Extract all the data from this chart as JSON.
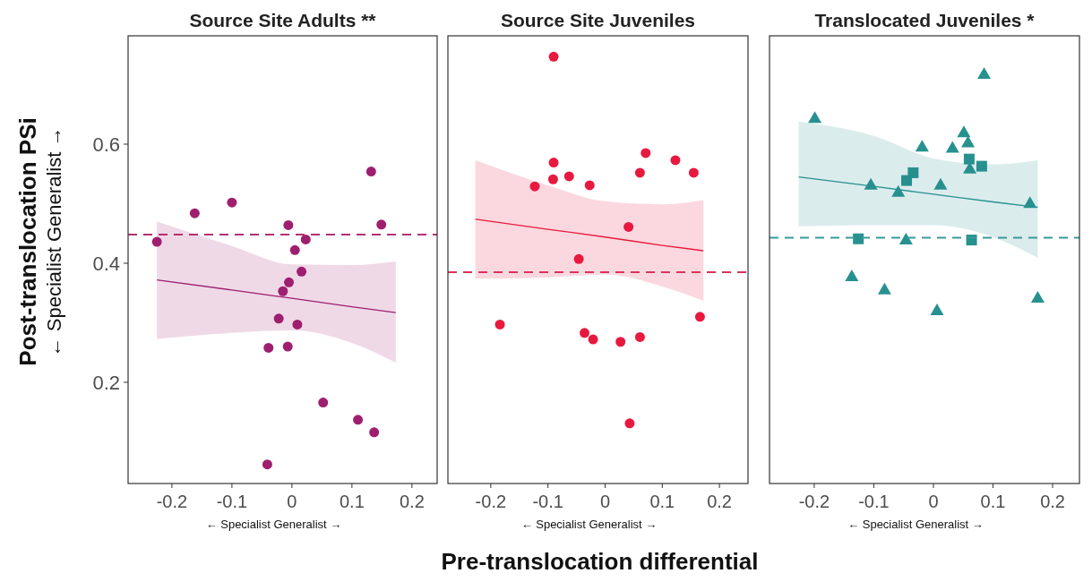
{
  "chart_data": [
    {
      "type": "scatter",
      "title": "Source Site Adults **",
      "ylabel": "Post-translocation PSi",
      "annotations": [
        "← Specialist   Generalist →",
        "← Specialist   Generalist →"
      ],
      "xlim": [
        -0.273,
        0.242
      ],
      "xticks": [
        -0.2,
        -0.1,
        0,
        0.1,
        0.2
      ],
      "ylim": [
        0.03,
        0.782
      ],
      "yticks": [
        0.2,
        0.4,
        0.6
      ],
      "tick_labels": true,
      "grid": false,
      "series": [
        {
          "type": "scatter",
          "marker": "circle",
          "color": "#9e1f6f",
          "x": [
            -0.225,
            -0.162,
            -0.1,
            -0.006,
            0.023,
            0.005,
            0.016,
            -0.005,
            -0.015,
            -0.022,
            0.009,
            -0.039,
            -0.007,
            0.132,
            0.149,
            0.052,
            0.11,
            0.137,
            -0.041
          ],
          "values": [
            0.436,
            0.484,
            0.502,
            0.464,
            0.44,
            0.422,
            0.386,
            0.368,
            0.353,
            0.307,
            0.297,
            0.258,
            0.26,
            0.554,
            0.465,
            0.166,
            0.137,
            0.116,
            0.062
          ]
        },
        {
          "type": "line",
          "marker": "none",
          "color": "#9e1f6f",
          "x": [
            -0.225,
            -0.1,
            0,
            0.1,
            0.173
          ],
          "values": [
            0.372,
            0.355,
            0.341,
            0.327,
            0.317
          ],
          "lower": [
            0.273,
            0.283,
            0.287,
            0.266,
            0.233
          ],
          "upper": [
            0.47,
            0.429,
            0.398,
            0.397,
            0.403
          ]
        }
      ],
      "ref_lines": [
        {
          "axis": "y",
          "value": 0.448,
          "color": "#b2326e",
          "line_style": "dashed"
        }
      ]
    },
    {
      "type": "scatter",
      "title": "Source Site Juveniles",
      "xlabel": "Pre-translocation differential",
      "annotations": [
        "← Specialist   Generalist →"
      ],
      "xlim": [
        -0.275,
        0.25
      ],
      "xticks": [
        -0.2,
        -0.1,
        0,
        0.1,
        0.2
      ],
      "ylim": [
        0.03,
        0.782
      ],
      "tick_labels": "x",
      "grid": false,
      "series": [
        {
          "type": "scatter",
          "marker": "circle",
          "color": "#e8193f",
          "x": [
            -0.09,
            -0.09,
            -0.091,
            -0.063,
            -0.123,
            -0.027,
            0.071,
            0.061,
            0.123,
            0.155,
            0.041,
            -0.046,
            -0.184,
            -0.036,
            -0.021,
            0.027,
            0.061,
            0.166,
            0.043
          ],
          "values": [
            0.747,
            0.569,
            0.541,
            0.546,
            0.529,
            0.531,
            0.585,
            0.552,
            0.573,
            0.552,
            0.461,
            0.407,
            0.297,
            0.283,
            0.272,
            0.268,
            0.276,
            0.31,
            0.131
          ]
        },
        {
          "type": "line",
          "marker": "none",
          "color": "#e8193f",
          "x": [
            -0.227,
            -0.1,
            0,
            0.1,
            0.172
          ],
          "values": [
            0.474,
            0.457,
            0.444,
            0.43,
            0.421
          ],
          "lower": [
            0.374,
            0.376,
            0.381,
            0.361,
            0.337
          ],
          "upper": [
            0.573,
            0.531,
            0.504,
            0.499,
            0.506
          ]
        }
      ],
      "ref_lines": [
        {
          "axis": "y",
          "value": 0.385,
          "color": "#d8345a",
          "line_style": "dashed"
        }
      ]
    },
    {
      "type": "scatter",
      "title": "Translocated Juveniles *",
      "annotations": [
        "← Specialist   Generalist →"
      ],
      "xlim": [
        -0.275,
        0.245
      ],
      "xticks": [
        -0.2,
        -0.1,
        0,
        0.1,
        0.2
      ],
      "ylim": [
        0.03,
        0.782
      ],
      "tick_labels": "x",
      "grid": false,
      "series": [
        {
          "type": "scatter",
          "marker": "triangle",
          "color": "#279190",
          "x": [
            -0.199,
            0.085,
            0.051,
            0.058,
            -0.019,
            0.032,
            0.061,
            -0.105,
            0.012,
            -0.059,
            0.162,
            -0.046,
            -0.137,
            -0.082,
            0.006,
            0.175
          ],
          "values": [
            0.644,
            0.718,
            0.62,
            0.603,
            0.596,
            0.594,
            0.559,
            0.532,
            0.532,
            0.52,
            0.501,
            0.44,
            0.378,
            0.356,
            0.321,
            0.342
          ]
        },
        {
          "type": "scatter",
          "marker": "square",
          "color": "#279190",
          "x": [
            -0.126,
            -0.034,
            -0.045,
            0.06,
            0.081,
            0.064
          ],
          "values": [
            0.441,
            0.552,
            0.539,
            0.575,
            0.563,
            0.439
          ]
        },
        {
          "type": "line",
          "marker": "none",
          "color": "#279190",
          "x": [
            -0.226,
            -0.1,
            0,
            0.1,
            0.175
          ],
          "values": [
            0.545,
            0.529,
            0.516,
            0.503,
            0.494
          ],
          "lower": [
            0.462,
            0.464,
            0.464,
            0.444,
            0.409
          ],
          "upper": [
            0.638,
            0.614,
            0.576,
            0.566,
            0.573
          ]
        }
      ],
      "ref_lines": [
        {
          "axis": "y",
          "value": 0.443,
          "color": "#3a9a9a",
          "line_style": "dashed"
        }
      ]
    }
  ]
}
